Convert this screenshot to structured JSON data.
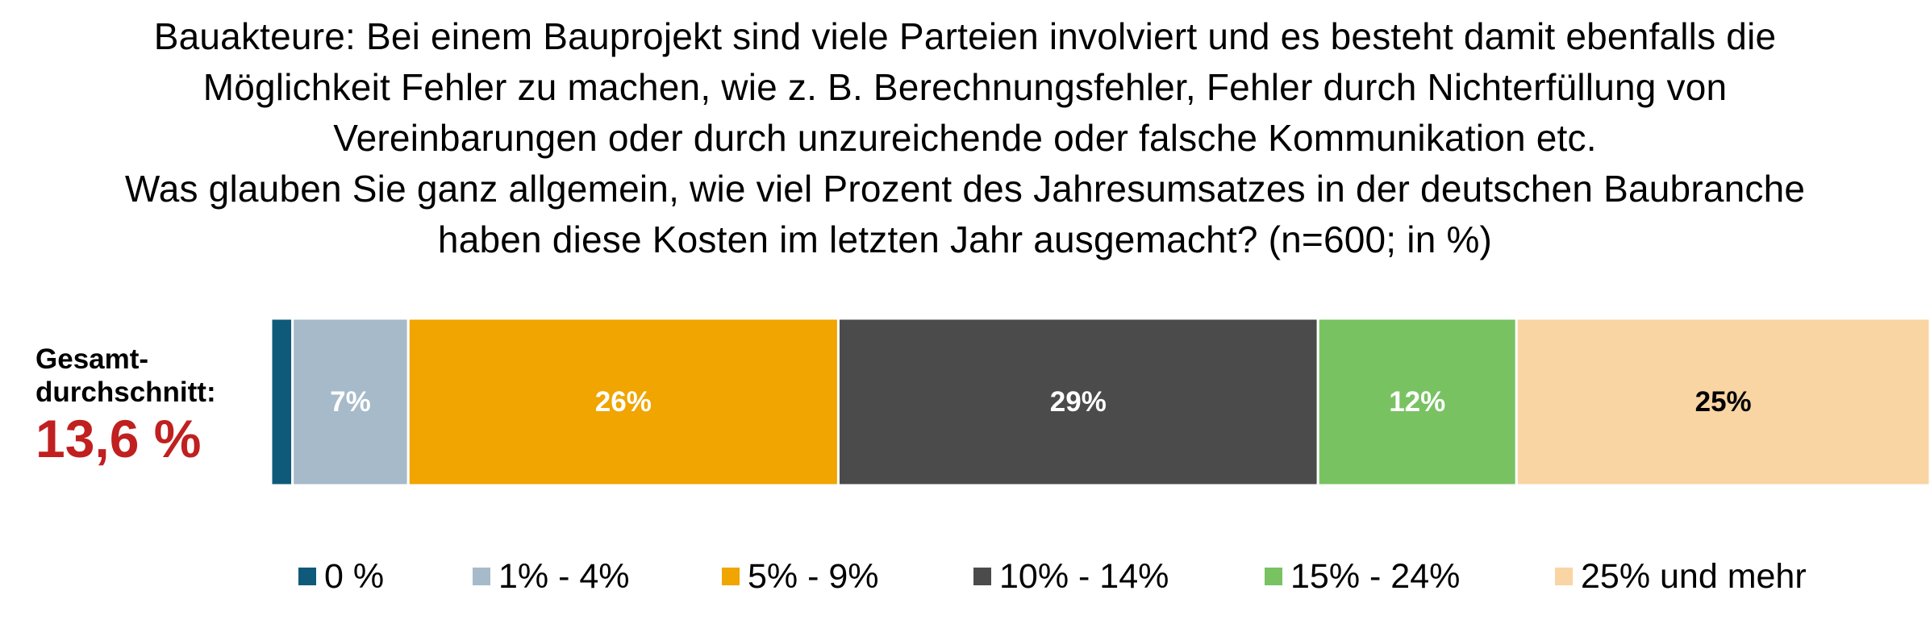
{
  "title_lines": [
    "Bauakteure: Bei einem Bauprojekt sind viele Parteien involviert und es besteht damit ebenfalls die",
    "Möglichkeit Fehler zu machen, wie z. B. Berechnungsfehler, Fehler durch Nichterfüllung von",
    "Vereinbarungen oder durch unzureichende oder falsche Kommunikation etc.",
    "Was glauben Sie ganz allgemein, wie viel Prozent des Jahresumsatzes in der deutschen Baubranche",
    "haben diese Kosten im letzten Jahr ausgemacht? (n=600; in %)"
  ],
  "summary": {
    "label_line1": "Gesamt-",
    "label_line2": "durchschnitt:",
    "value": "13,6 %"
  },
  "chart_data": {
    "type": "bar",
    "orientation": "horizontal-stacked-100",
    "categories": [
      "Gesamt"
    ],
    "series": [
      {
        "name": "0 %",
        "values": [
          1.3
        ],
        "color": "#0f5a7a",
        "label": ""
      },
      {
        "name": "1% - 4%",
        "values": [
          7
        ],
        "color": "#a6bac9",
        "label": "7%"
      },
      {
        "name": "5% - 9%",
        "values": [
          26
        ],
        "color": "#f0a500",
        "label": "26%"
      },
      {
        "name": "10% - 14%",
        "values": [
          29
        ],
        "color": "#4b4b4b",
        "label": "29%"
      },
      {
        "name": "15% - 24%",
        "values": [
          12
        ],
        "color": "#78c262",
        "label": "12%"
      },
      {
        "name": "25% und mehr",
        "values": [
          25
        ],
        "color": "#f9d5a4",
        "label": "25%"
      }
    ],
    "label_colors": [
      "#ffffff",
      "#ffffff",
      "#ffffff",
      "#ffffff",
      "#ffffff",
      "#000000"
    ],
    "legend_position": "bottom",
    "grid": false
  }
}
